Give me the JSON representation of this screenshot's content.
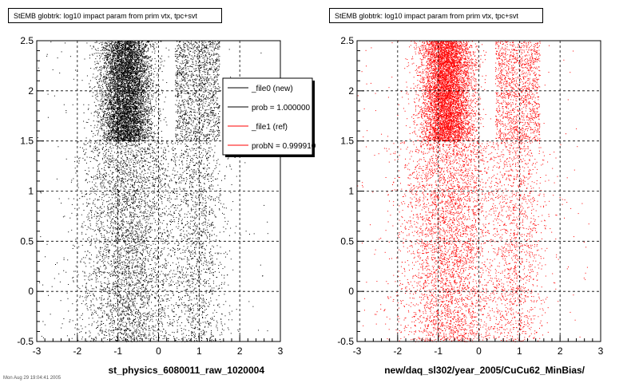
{
  "chart_data": [
    {
      "type": "scatter",
      "title": "StEMB globtrk: log10 impact param from prim vtx, tpc+svt",
      "xlabel": "st_physics_6080011_raw_1020004",
      "ylabel": "",
      "xlim": [
        -3,
        3
      ],
      "ylim": [
        -0.5,
        2.5
      ],
      "xticks": [
        -3,
        -2,
        -1,
        0,
        1,
        2,
        3
      ],
      "yticks": [
        -0.5,
        0,
        0.5,
        1,
        1.5,
        2,
        2.5
      ],
      "xtick_labels": [
        "-3",
        "-2",
        "-1",
        "0",
        "1",
        "2",
        "3"
      ],
      "ytick_labels": [
        "-0.5",
        "0",
        "0.5",
        "1",
        "1.5",
        "2",
        "2.5"
      ],
      "grid": true,
      "marker_color": "#000000",
      "dense_region": {
        "x": [
          -1.7,
          0.1
        ],
        "y": [
          1.5,
          2.5
        ]
      },
      "secondary_band": {
        "x": [
          0.4,
          1.5
        ]
      },
      "legend": {
        "placement": "top-right",
        "entries": [
          {
            "label": "_file0 (new)",
            "color": "#000000"
          },
          {
            "label": "prob = 1.000000",
            "color": "#000000"
          },
          {
            "label": "_file1 (ref)",
            "color": "#ff0000"
          },
          {
            "label": "probN = 0.999910",
            "color": "#ff0000"
          }
        ]
      }
    },
    {
      "type": "scatter",
      "title": "StEMB globtrk: log10 impact param from prim vtx, tpc+svt",
      "xlabel": "new/daq_sl302/year_2005/CuCu62_MinBias/",
      "ylabel": "",
      "xlim": [
        -3,
        3
      ],
      "ylim": [
        -0.5,
        2.5
      ],
      "xticks": [
        -3,
        -2,
        -1,
        0,
        1,
        2,
        3
      ],
      "yticks": [
        -0.5,
        0,
        0.5,
        1,
        1.5,
        2,
        2.5
      ],
      "xtick_labels": [
        "-3",
        "-2",
        "-1",
        "0",
        "1",
        "2",
        "3"
      ],
      "ytick_labels": [
        "-0.5",
        "0",
        "0.5",
        "1",
        "1.5",
        "2",
        "2.5"
      ],
      "grid": true,
      "marker_color": "#ff0000",
      "dense_region": {
        "x": [
          -1.7,
          0.1
        ],
        "y": [
          1.5,
          2.5
        ]
      },
      "secondary_band": {
        "x": [
          0.4,
          1.5
        ]
      }
    }
  ],
  "footer_text": "Mon Aug 29 19:04:41 2005"
}
